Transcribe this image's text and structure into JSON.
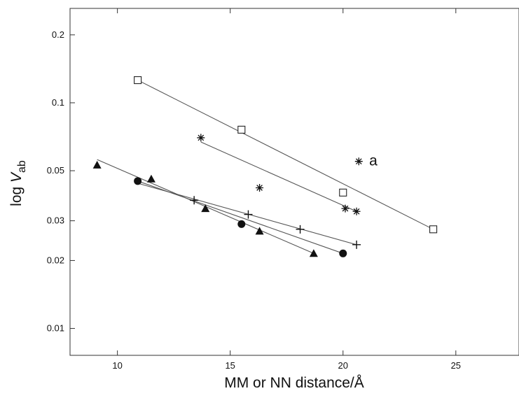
{
  "chart_data": {
    "type": "scatter",
    "xlabel": "MM or NN distance/Å",
    "ylabel_prefix": "log ",
    "ylabel_var": "V",
    "ylabel_sub": "ab",
    "xlim": [
      7.9,
      27.8
    ],
    "ylim": [
      0.0076,
      0.262
    ],
    "y_scale": "log",
    "x_ticks": [
      10,
      15,
      20,
      25
    ],
    "x_tick_labels": [
      "10",
      "15",
      "20",
      "25"
    ],
    "y_ticks": [
      0.01,
      0.02,
      0.03,
      0.05,
      0.1,
      0.2
    ],
    "y_tick_labels": [
      "0.01",
      "0.02",
      "0.03",
      "0.05",
      "0.1",
      "0.2"
    ],
    "grid": false,
    "annotations": [
      {
        "text": "a",
        "x": 21.1,
        "y": 0.055
      }
    ],
    "series": [
      {
        "marker": "open-square",
        "points": [
          [
            10.9,
            0.126
          ],
          [
            15.5,
            0.076
          ],
          [
            20.0,
            0.04
          ],
          [
            24.0,
            0.0275
          ]
        ],
        "fit": [
          [
            10.9,
            0.126
          ],
          [
            24.0,
            0.0275
          ]
        ]
      },
      {
        "marker": "asterisk",
        "points": [
          [
            13.7,
            0.07
          ],
          [
            16.3,
            0.042
          ],
          [
            20.1,
            0.034
          ],
          [
            20.6,
            0.033
          ],
          [
            20.7,
            0.055
          ]
        ],
        "fit": [
          [
            13.7,
            0.067
          ],
          [
            20.6,
            0.033
          ]
        ]
      },
      {
        "marker": "filled-triangle",
        "points": [
          [
            9.1,
            0.053
          ],
          [
            11.5,
            0.046
          ],
          [
            13.9,
            0.034
          ],
          [
            16.3,
            0.027
          ],
          [
            18.7,
            0.0215
          ]
        ],
        "fit": [
          [
            9.1,
            0.056
          ],
          [
            18.7,
            0.0215
          ]
        ]
      },
      {
        "marker": "filled-circle",
        "points": [
          [
            10.9,
            0.045
          ],
          [
            15.5,
            0.029
          ],
          [
            20.0,
            0.0215
          ]
        ],
        "fit": [
          [
            10.9,
            0.045
          ],
          [
            20.0,
            0.0215
          ]
        ]
      },
      {
        "marker": "plus",
        "points": [
          [
            13.4,
            0.037
          ],
          [
            15.8,
            0.032
          ],
          [
            18.1,
            0.0275
          ],
          [
            20.6,
            0.0235
          ]
        ],
        "fit": [
          [
            10.9,
            0.044
          ],
          [
            20.6,
            0.0235
          ]
        ]
      }
    ]
  }
}
